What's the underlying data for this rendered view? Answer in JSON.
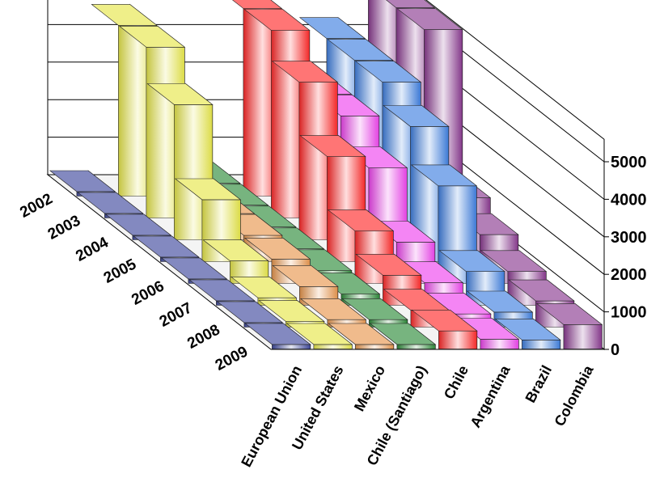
{
  "chart_data": {
    "type": "area",
    "style": "3d-ribbon",
    "title": "",
    "xlabel": "",
    "ylabel": "",
    "ylim": [
      0,
      5000
    ],
    "yticks": [
      "0",
      "1000",
      "2000",
      "3000",
      "4000",
      "5000"
    ],
    "grid": true,
    "legend": "none",
    "categories": [
      "European Union",
      "United States",
      "Mexico",
      "Chile (Santiago)",
      "Chile",
      "Argentina",
      "Brazil",
      "Colombia"
    ],
    "series": [
      {
        "name": "2002",
        "values": [
          120,
          4550,
          700,
          340,
          5000,
          3300,
          4200,
          10000
        ]
      },
      {
        "name": "2003",
        "values": [
          120,
          4550,
          700,
          340,
          5000,
          3300,
          4200,
          9800
        ]
      },
      {
        "name": "2004",
        "values": [
          120,
          3600,
          700,
          340,
          4200,
          3300,
          4200,
          9000
        ]
      },
      {
        "name": "2005",
        "values": [
          120,
          1650,
          700,
          340,
          2800,
          2500,
          3600,
          1700
        ]
      },
      {
        "name": "2006",
        "values": [
          120,
          600,
          650,
          340,
          1400,
          1100,
          2600,
          1300
        ]
      },
      {
        "name": "2007",
        "values": [
          120,
          200,
          500,
          300,
          800,
          600,
          900,
          900
        ]
      },
      {
        "name": "2008",
        "values": [
          120,
          150,
          200,
          200,
          450,
          350,
          400,
          700
        ]
      },
      {
        "name": "2009",
        "values": [
          120,
          120,
          120,
          120,
          480,
          260,
          240,
          650
        ]
      }
    ],
    "colors": [
      "#404a9e",
      "#e6e64a",
      "#e8964e",
      "#2e8b3a",
      "#ff2a2a",
      "#ee44ee",
      "#3f7fe0",
      "#8a3a90"
    ]
  }
}
